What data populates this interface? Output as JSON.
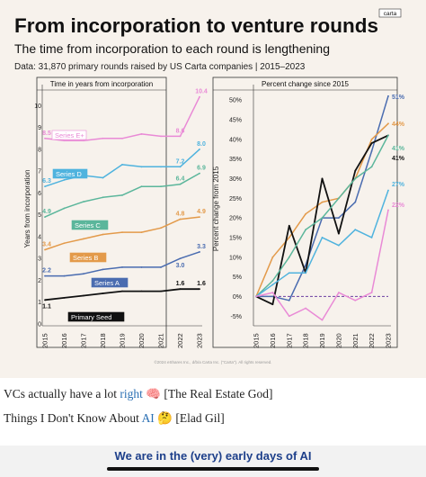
{
  "header": {
    "title": "From incorporation to venture rounds",
    "subtitle": "The time from incorporation to each round is lengthening",
    "data_note": "Data: 31,870 primary rounds raised by US Carta companies | 2015–2023",
    "logo_text": "carta",
    "footer_credit": "©2024 eShares Inc., d/b/a Carta Inc. (\"Carta\"). All rights reserved."
  },
  "colors": {
    "background": "#f7f2ec",
    "series_e_plus": "#e98ad6",
    "series_d": "#4fb3de",
    "series_c": "#5bb69b",
    "series_b": "#e39a4a",
    "series_a": "#4a6cb0",
    "primary_seed": "#111111",
    "zero_line": "#6b3fa0"
  },
  "chart_data": [
    {
      "type": "line",
      "title": "Time in years from incorporation",
      "xlabel": "",
      "ylabel": "Years from incorporation",
      "ylim": [
        0,
        10.8
      ],
      "yticks": [
        "0",
        "1",
        "2",
        "3",
        "4",
        "5",
        "6",
        "7",
        "8",
        "9",
        "10"
      ],
      "grid": false,
      "categories": [
        "2015",
        "2016",
        "2017",
        "2018",
        "2019",
        "2020",
        "2021",
        "2022",
        "2023"
      ],
      "series": [
        {
          "name": "Series E+",
          "color_key": "series_e_plus",
          "values": [
            8.5,
            8.4,
            8.4,
            8.5,
            8.5,
            8.7,
            8.6,
            8.6,
            10.4
          ],
          "end_label": "10.4",
          "start_label": "8.5",
          "mid_label": "8.6",
          "mid_index": 7
        },
        {
          "name": "Series D",
          "color_key": "series_d",
          "values": [
            6.3,
            6.6,
            6.8,
            6.7,
            7.3,
            7.2,
            7.2,
            7.2,
            8.0
          ],
          "end_label": "8.0",
          "start_label": "6.3",
          "mid_label": "7.2",
          "mid_index": 7
        },
        {
          "name": "Series C",
          "color_key": "series_c",
          "values": [
            4.9,
            5.3,
            5.6,
            5.8,
            5.9,
            6.3,
            6.3,
            6.4,
            6.9
          ],
          "end_label": "6.9",
          "start_label": "4.9",
          "mid_label": "6.4",
          "mid_index": 7
        },
        {
          "name": "Series B",
          "color_key": "series_b",
          "values": [
            3.4,
            3.7,
            3.9,
            4.1,
            4.2,
            4.2,
            4.4,
            4.8,
            4.9
          ],
          "end_label": "4.9",
          "start_label": "3.4",
          "mid_label": "4.8",
          "mid_index": 7
        },
        {
          "name": "Series A",
          "color_key": "series_a",
          "values": [
            2.2,
            2.2,
            2.3,
            2.5,
            2.6,
            2.6,
            2.6,
            3.0,
            3.3
          ],
          "end_label": "3.3",
          "start_label": "2.2",
          "mid_label": "3.0",
          "mid_index": 7
        },
        {
          "name": "Primary Seed",
          "color_key": "primary_seed",
          "values": [
            1.1,
            1.2,
            1.3,
            1.4,
            1.5,
            1.5,
            1.5,
            1.6,
            1.6
          ],
          "end_label": "1.6",
          "start_label": "1.1",
          "mid_label": "1.6",
          "mid_index": 7
        }
      ]
    },
    {
      "type": "line",
      "title": "Percent change since 2015",
      "xlabel": "",
      "ylabel": "Percent change from 2015",
      "ylim": [
        -7,
        53
      ],
      "yticks": [
        "-5%",
        "0%",
        "5%",
        "10%",
        "15%",
        "20%",
        "25%",
        "30%",
        "35%",
        "40%",
        "45%",
        "50%"
      ],
      "grid": false,
      "categories": [
        "2015",
        "2016",
        "2017",
        "2018",
        "2019",
        "2020",
        "2021",
        "2022",
        "2023"
      ],
      "series": [
        {
          "name": "Series A",
          "color_key": "series_a",
          "values": [
            0,
            0,
            -1,
            8,
            20,
            20,
            24,
            37,
            51
          ],
          "end_label": "51%"
        },
        {
          "name": "Series B",
          "color_key": "series_b",
          "values": [
            0,
            10,
            15,
            21,
            24,
            25,
            30,
            40,
            44
          ],
          "end_label": "44%"
        },
        {
          "name": "Primary Seed",
          "color_key": "primary_seed",
          "values": [
            0,
            -2,
            18,
            6,
            30,
            16,
            32,
            39,
            41
          ],
          "end_label": "41%"
        },
        {
          "name": "Series C",
          "color_key": "series_c",
          "values": [
            0,
            4,
            10,
            17,
            20,
            25,
            30,
            33,
            41
          ],
          "end_label": "41%"
        },
        {
          "name": "Series D",
          "color_key": "series_d",
          "values": [
            0,
            3,
            6,
            6,
            15,
            13,
            17,
            15,
            27
          ],
          "end_label": "27%"
        },
        {
          "name": "Series E+",
          "color_key": "series_e_plus",
          "values": [
            0,
            1,
            -5,
            -3,
            -6,
            1,
            -1,
            1,
            22
          ],
          "end_label": "22%"
        }
      ]
    }
  ],
  "below": {
    "line1_prefix": "VCs actually have a lot ",
    "line1_link": "right",
    "line1_emoji": "🧠",
    "line1_suffix": " [The Real Estate God]",
    "line2_prefix": "Things I Don't Know About ",
    "line2_link": "AI",
    "line2_emoji": "🤔",
    "line2_suffix": " [Elad Gil]",
    "bottom_title": "We are in the (very) early days of AI"
  }
}
